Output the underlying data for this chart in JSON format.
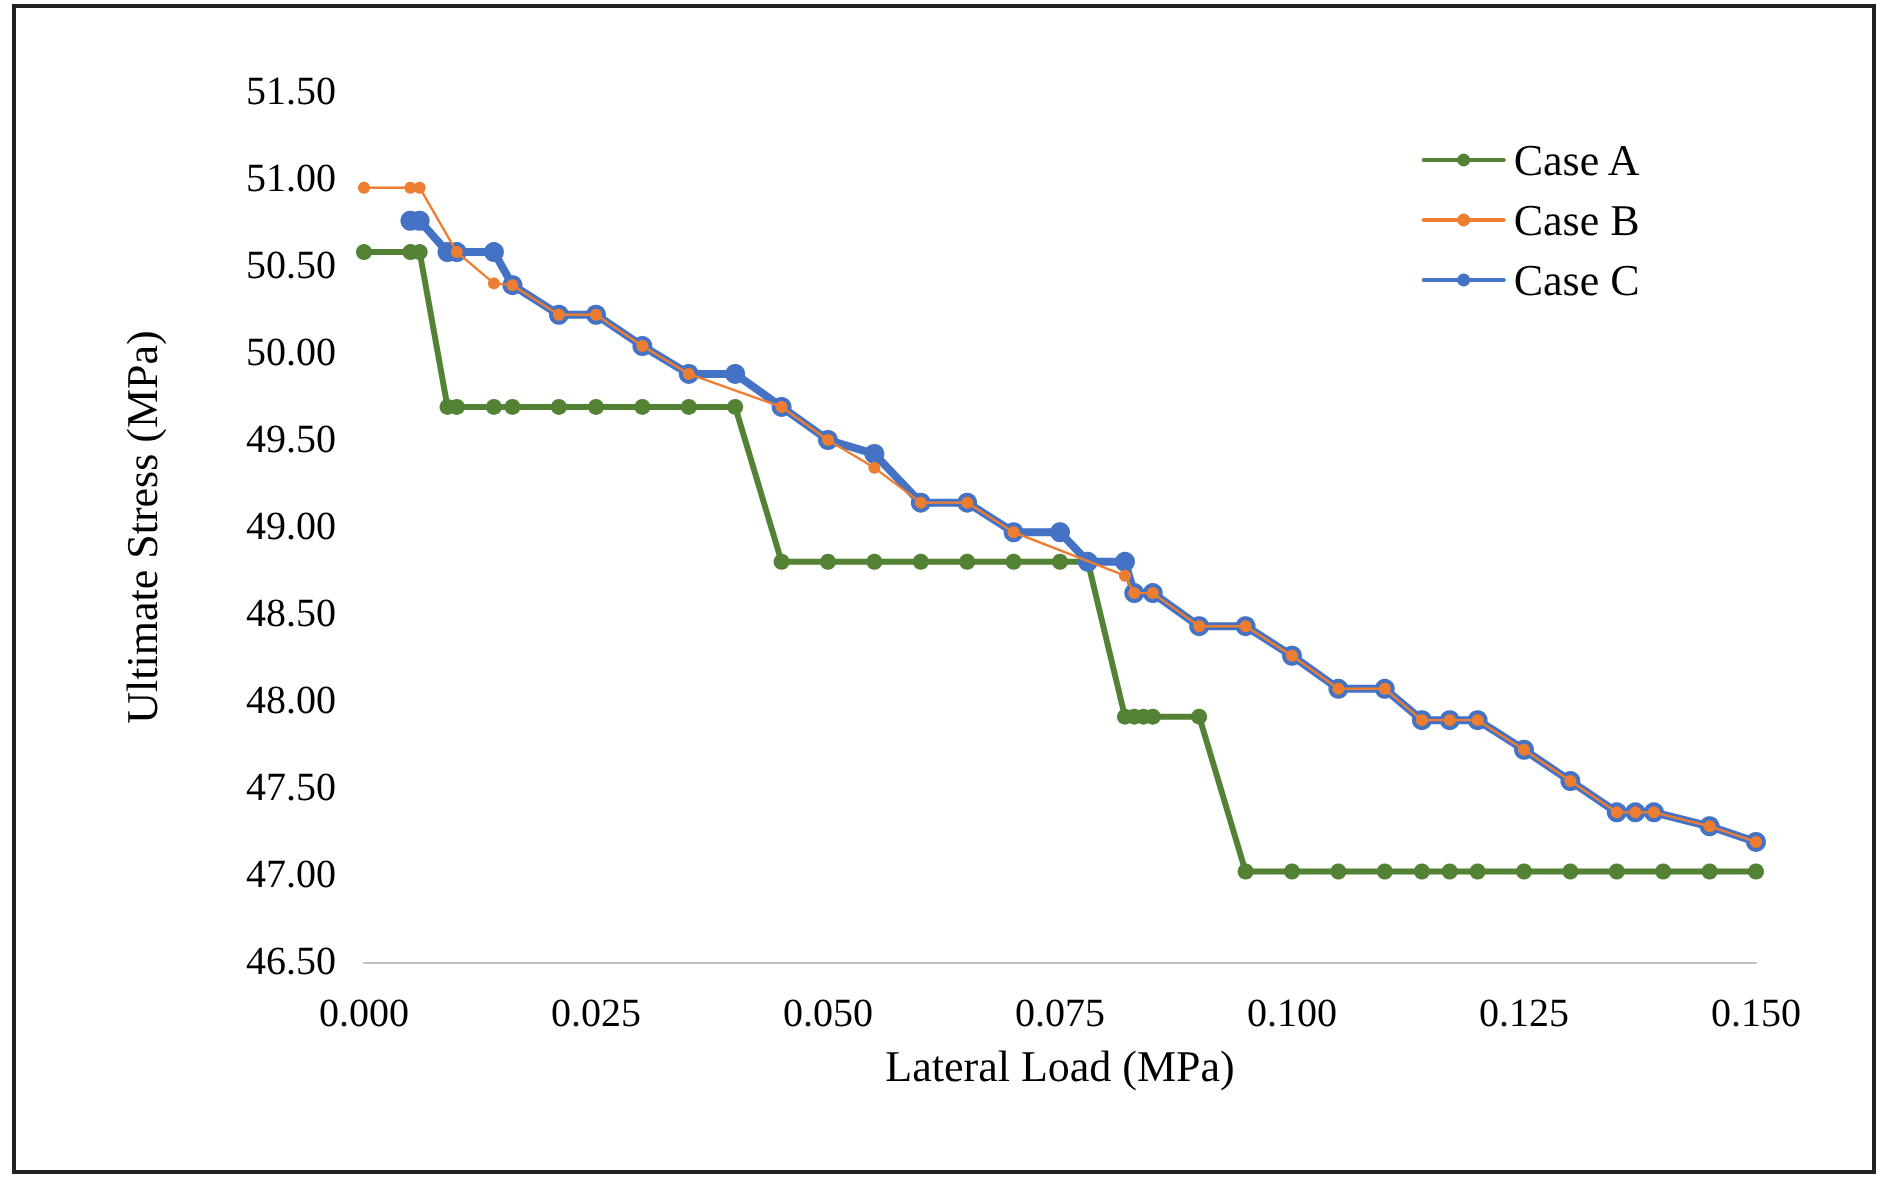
{
  "chart_data": {
    "type": "line",
    "xlabel": "Lateral Load (MPa)",
    "ylabel": "Ultimate Stress (MPa)",
    "series": [
      {
        "name": "Case A",
        "color": "#548235",
        "x": [
          0,
          0.005,
          0.006,
          0.009,
          0.01,
          0.014,
          0.016,
          0.021,
          0.025,
          0.03,
          0.035,
          0.04,
          0.045,
          0.05,
          0.055,
          0.06,
          0.065,
          0.07,
          0.075,
          0.078,
          0.082,
          0.083,
          0.084,
          0.085,
          0.09,
          0.095,
          0.1,
          0.105,
          0.11,
          0.114,
          0.117,
          0.12,
          0.125,
          0.13,
          0.135,
          0.14,
          0.145,
          0.15
        ],
        "values": [
          50.58,
          50.58,
          50.58,
          49.69,
          49.69,
          49.69,
          49.69,
          49.69,
          49.69,
          49.69,
          49.69,
          49.69,
          48.8,
          48.8,
          48.8,
          48.8,
          48.8,
          48.8,
          48.8,
          48.8,
          47.91,
          47.91,
          47.91,
          47.91,
          47.91,
          47.02,
          47.02,
          47.02,
          47.02,
          47.02,
          47.02,
          47.02,
          47.02,
          47.02,
          47.02,
          47.02,
          47.02,
          47.02
        ]
      },
      {
        "name": "Case B",
        "color": "#ed7d31",
        "x": [
          0,
          0.005,
          0.006,
          0.01,
          0.014,
          0.016,
          0.021,
          0.025,
          0.03,
          0.035,
          0.045,
          0.05,
          0.055,
          0.06,
          0.065,
          0.07,
          0.082,
          0.083,
          0.085,
          0.09,
          0.095,
          0.1,
          0.105,
          0.11,
          0.114,
          0.117,
          0.12,
          0.125,
          0.13,
          0.135,
          0.137,
          0.139,
          0.145,
          0.15
        ],
        "values": [
          50.95,
          50.95,
          50.95,
          50.58,
          50.4,
          50.39,
          50.22,
          50.22,
          50.04,
          49.88,
          49.69,
          49.5,
          49.34,
          49.14,
          49.14,
          48.97,
          48.72,
          48.62,
          48.62,
          48.43,
          48.43,
          48.26,
          48.07,
          48.07,
          47.89,
          47.89,
          47.89,
          47.72,
          47.54,
          47.36,
          47.36,
          47.36,
          47.28,
          47.19
        ]
      },
      {
        "name": "Case C",
        "color": "#4472c4",
        "x": [
          0.005,
          0.006,
          0.009,
          0.01,
          0.014,
          0.016,
          0.021,
          0.025,
          0.03,
          0.035,
          0.04,
          0.045,
          0.05,
          0.055,
          0.06,
          0.065,
          0.07,
          0.075,
          0.078,
          0.082,
          0.083,
          0.085,
          0.09,
          0.095,
          0.1,
          0.105,
          0.11,
          0.114,
          0.117,
          0.12,
          0.125,
          0.13,
          0.135,
          0.137,
          0.139,
          0.145,
          0.15
        ],
        "values": [
          50.76,
          50.76,
          50.58,
          50.58,
          50.58,
          50.39,
          50.22,
          50.22,
          50.04,
          49.88,
          49.88,
          49.69,
          49.5,
          49.42,
          49.14,
          49.14,
          48.97,
          48.97,
          48.8,
          48.8,
          48.62,
          48.62,
          48.43,
          48.43,
          48.26,
          48.07,
          48.07,
          47.89,
          47.89,
          47.89,
          47.72,
          47.54,
          47.36,
          47.36,
          47.36,
          47.28,
          47.19
        ]
      }
    ],
    "xlim": [
      0,
      0.15
    ],
    "xticks": [
      {
        "value": 0,
        "label": "0.000"
      },
      {
        "value": 0.025,
        "label": "0.025"
      },
      {
        "value": 0.05,
        "label": "0.050"
      },
      {
        "value": 0.075,
        "label": "0.075"
      },
      {
        "value": 0.1,
        "label": "0.100"
      },
      {
        "value": 0.125,
        "label": "0.125"
      },
      {
        "value": 0.15,
        "label": "0.150"
      }
    ],
    "ylim": [
      46.5,
      51.5
    ],
    "yticks": [
      {
        "value": 46.5,
        "label": "46.50"
      },
      {
        "value": 47,
        "label": "47.00"
      },
      {
        "value": 47.5,
        "label": "47.50"
      },
      {
        "value": 48,
        "label": "48.00"
      },
      {
        "value": 48.5,
        "label": "48.50"
      },
      {
        "value": 49,
        "label": "49.00"
      },
      {
        "value": 49.5,
        "label": "49.50"
      },
      {
        "value": 50,
        "label": "50.00"
      },
      {
        "value": 50.5,
        "label": "50.50"
      },
      {
        "value": 51,
        "label": "51.00"
      },
      {
        "value": 51.5,
        "label": "51.50"
      }
    ],
    "grid": false,
    "legend": "top right",
    "marker": "circle",
    "line_style": "solid"
  }
}
